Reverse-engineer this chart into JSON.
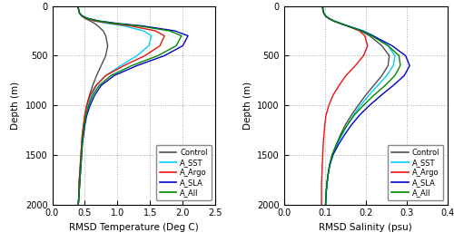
{
  "depth": [
    0,
    10,
    25,
    50,
    75,
    100,
    125,
    150,
    175,
    200,
    250,
    300,
    400,
    500,
    600,
    700,
    800,
    900,
    1000,
    1100,
    1200,
    1300,
    1400,
    1500,
    1600,
    1700,
    1800,
    1900,
    2000
  ],
  "temp_control": [
    0.4,
    0.4,
    0.4,
    0.41,
    0.42,
    0.45,
    0.5,
    0.58,
    0.65,
    0.7,
    0.78,
    0.82,
    0.85,
    0.82,
    0.75,
    0.68,
    0.62,
    0.57,
    0.53,
    0.5,
    0.48,
    0.46,
    0.45,
    0.44,
    0.43,
    0.42,
    0.41,
    0.41,
    0.4
  ],
  "temp_sst": [
    0.4,
    0.4,
    0.4,
    0.41,
    0.42,
    0.46,
    0.52,
    0.65,
    0.85,
    1.1,
    1.4,
    1.52,
    1.48,
    1.3,
    1.05,
    0.82,
    0.68,
    0.6,
    0.55,
    0.51,
    0.49,
    0.47,
    0.46,
    0.45,
    0.44,
    0.43,
    0.42,
    0.41,
    0.4
  ],
  "temp_argo": [
    0.4,
    0.4,
    0.4,
    0.41,
    0.42,
    0.46,
    0.52,
    0.65,
    0.9,
    1.2,
    1.58,
    1.72,
    1.65,
    1.42,
    1.1,
    0.82,
    0.67,
    0.58,
    0.53,
    0.5,
    0.48,
    0.46,
    0.45,
    0.44,
    0.43,
    0.42,
    0.41,
    0.41,
    0.4
  ],
  "temp_sla": [
    0.4,
    0.4,
    0.4,
    0.41,
    0.42,
    0.46,
    0.55,
    0.72,
    1.0,
    1.38,
    1.88,
    2.08,
    2.0,
    1.72,
    1.3,
    0.95,
    0.75,
    0.65,
    0.58,
    0.53,
    0.5,
    0.48,
    0.46,
    0.45,
    0.44,
    0.43,
    0.42,
    0.41,
    0.4
  ],
  "temp_all": [
    0.4,
    0.4,
    0.4,
    0.41,
    0.42,
    0.46,
    0.54,
    0.7,
    0.96,
    1.32,
    1.8,
    1.98,
    1.9,
    1.62,
    1.22,
    0.9,
    0.72,
    0.62,
    0.56,
    0.52,
    0.49,
    0.47,
    0.46,
    0.45,
    0.44,
    0.43,
    0.42,
    0.41,
    0.4
  ],
  "sal_control": [
    0.095,
    0.095,
    0.095,
    0.096,
    0.098,
    0.102,
    0.11,
    0.122,
    0.138,
    0.155,
    0.188,
    0.21,
    0.24,
    0.258,
    0.255,
    0.24,
    0.22,
    0.2,
    0.182,
    0.165,
    0.15,
    0.138,
    0.128,
    0.118,
    0.112,
    0.108,
    0.105,
    0.103,
    0.102
  ],
  "sal_sst": [
    0.095,
    0.095,
    0.095,
    0.096,
    0.098,
    0.102,
    0.11,
    0.122,
    0.14,
    0.158,
    0.195,
    0.22,
    0.255,
    0.272,
    0.268,
    0.252,
    0.23,
    0.208,
    0.188,
    0.17,
    0.155,
    0.142,
    0.13,
    0.12,
    0.113,
    0.108,
    0.105,
    0.103,
    0.102
  ],
  "sal_argo": [
    0.095,
    0.095,
    0.095,
    0.096,
    0.098,
    0.102,
    0.11,
    0.122,
    0.138,
    0.155,
    0.185,
    0.198,
    0.205,
    0.195,
    0.175,
    0.152,
    0.135,
    0.12,
    0.11,
    0.103,
    0.1,
    0.098,
    0.096,
    0.095,
    0.094,
    0.093,
    0.092,
    0.092,
    0.092
  ],
  "sal_sla": [
    0.095,
    0.095,
    0.095,
    0.096,
    0.098,
    0.102,
    0.11,
    0.122,
    0.138,
    0.155,
    0.192,
    0.218,
    0.265,
    0.298,
    0.308,
    0.295,
    0.268,
    0.238,
    0.21,
    0.185,
    0.165,
    0.148,
    0.133,
    0.12,
    0.112,
    0.108,
    0.105,
    0.103,
    0.102
  ],
  "sal_all": [
    0.095,
    0.095,
    0.095,
    0.096,
    0.098,
    0.102,
    0.11,
    0.122,
    0.138,
    0.155,
    0.19,
    0.215,
    0.255,
    0.282,
    0.285,
    0.272,
    0.248,
    0.22,
    0.195,
    0.172,
    0.155,
    0.14,
    0.128,
    0.118,
    0.112,
    0.108,
    0.105,
    0.103,
    0.102
  ],
  "colors": {
    "control": "#4d4d4d",
    "sst": "#00CCFF",
    "argo": "#EE1111",
    "sla": "#0000CC",
    "all": "#008800"
  },
  "legend_labels": [
    "Control",
    "A_SST",
    "A_Argo",
    "A_SLA",
    "A_All"
  ],
  "temp_xlabel": "RMSD Temperature (Deg C)",
  "sal_xlabel": "RMSD Salinity (psu)",
  "ylabel": "Depth (m)",
  "temp_xlim": [
    0,
    2.5
  ],
  "sal_xlim": [
    0,
    0.4
  ],
  "ylim": [
    2000,
    0
  ],
  "temp_xticks": [
    0,
    0.5,
    1.0,
    1.5,
    2.0,
    2.5
  ],
  "sal_xticks": [
    0,
    0.1,
    0.2,
    0.3,
    0.4
  ],
  "yticks": [
    0,
    500,
    1000,
    1500,
    2000
  ]
}
